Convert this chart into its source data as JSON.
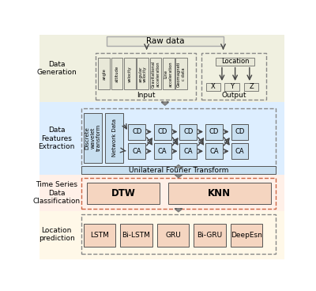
{
  "bg_color": "#ffffff",
  "section_bg_colors": {
    "data_generation": "#f0f0e0",
    "data_features": "#ddeeff",
    "time_series": "#fff0e8",
    "location": "#fff8e8"
  },
  "raw_data_box": {
    "text": "Raw data",
    "color": "#e8e8d8",
    "edge": "#aaaaaa"
  },
  "input_labels": [
    "angle",
    "attitude",
    "velocity",
    "angular\nvelocity",
    "Gravitational\nacceleration",
    "Line\nacceleration",
    "Geomagneti\nc data"
  ],
  "output_labels": [
    "X",
    "Y",
    "Z"
  ],
  "location_label": "Location",
  "input_text": "Input",
  "output_text": "Output",
  "dwt_label": "Discrete\nwavelet\ntransform",
  "network_label": "Network Data",
  "cd_label": "CD",
  "ca_label": "CA",
  "fourier_label": "Unilateral Fourier Transform",
  "dtw_label": "DTW",
  "knn_label": "KNN",
  "prediction_labels": [
    "LSTM",
    "Bi-LSTM",
    "GRU",
    "Bi-GRU",
    "DeepEsn"
  ],
  "section_labels": {
    "data_generation": "Data\nGeneration",
    "data_features": "Data\nFeatures\nExtraction",
    "time_series": "Time Series\nData\nClassification",
    "location": "Location\nprediction"
  },
  "box_colors": {
    "input_item": "#e8e8d8",
    "output_item": "#e8e8d8",
    "dwt": "#c8dff0",
    "cd_ca": "#c8dff0",
    "fourier": "#c8dff0",
    "dtw_knn": "#f5d5c0",
    "prediction": "#f5d5c0"
  },
  "dashed_edge": "#888888",
  "solid_edge": "#555555",
  "arrow_color": "#444444"
}
